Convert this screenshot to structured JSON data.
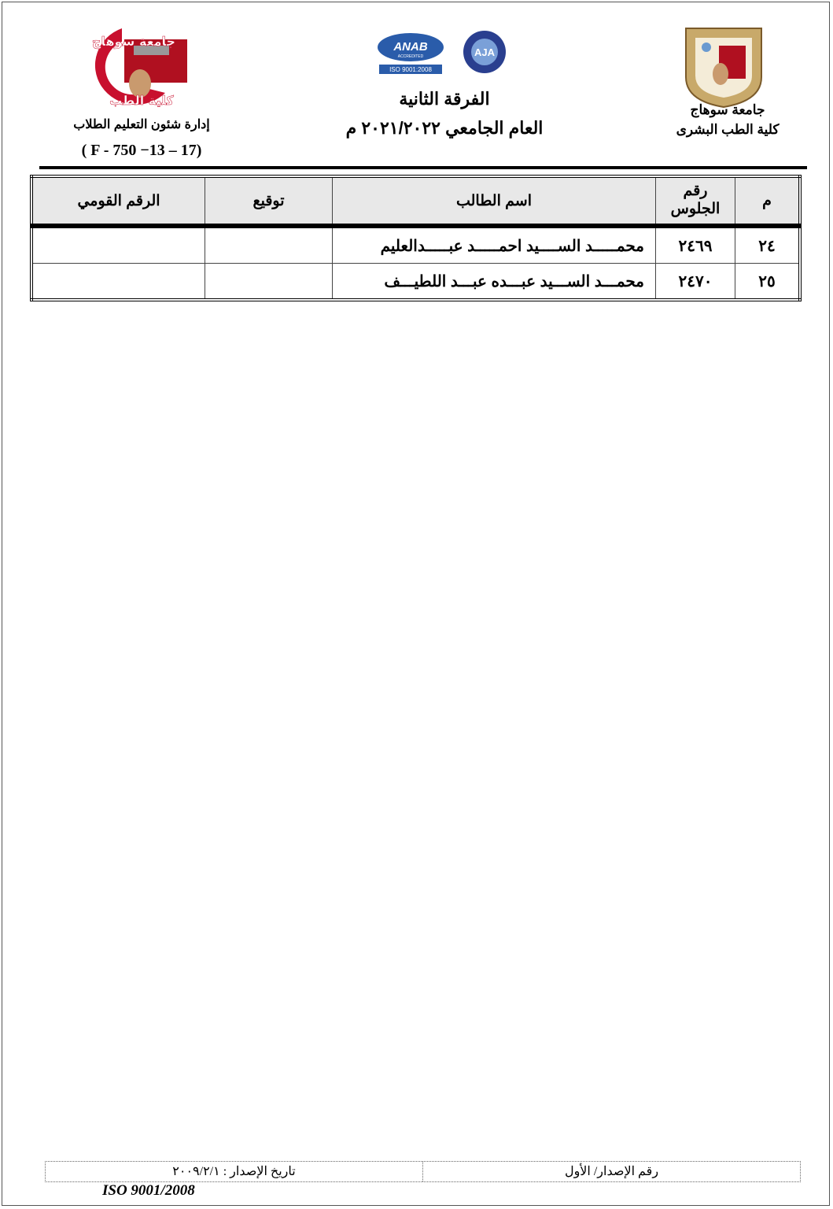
{
  "header": {
    "right": {
      "university": "جامعة سوهاج",
      "faculty": "كلية الطب البشرى"
    },
    "center": {
      "year_group": "الفرقة الثانية",
      "academic_year": "العام الجامعي ٢٠٢١/٢٠٢٢ م"
    },
    "left": {
      "department": "إدارة شئون التعليم الطلاب",
      "form_code": "( F - 750 −13 – 17)"
    },
    "logos": {
      "faculty_logo_text": "جامعة سوهاج كلية الطب",
      "anab": "ANAB",
      "anab_sub": "ACCREDITED",
      "iso_badge": "ISO 9001:2008",
      "aja": "AJA"
    }
  },
  "table": {
    "headers": {
      "index": "م",
      "seat_no": "رقم الجلوس",
      "name": "اسم الطالب",
      "signature": "توقيع",
      "national_id": "الرقم القومي"
    },
    "rows": [
      {
        "index": "٢٤",
        "seat_no": "٢٤٦٩",
        "name": "محمـــــد الســــيد احمـــــد عبـــــدالعليم",
        "signature": "",
        "national_id": ""
      },
      {
        "index": "٢٥",
        "seat_no": "٢٤٧٠",
        "name": "محمـــد الســـيد عبـــده عبـــد اللطيـــف",
        "signature": "",
        "national_id": ""
      }
    ]
  },
  "footer": {
    "issue_no": "رقم الإصدار/ الأول",
    "issue_date": "تاريخ الإصدار : ٢٠٠٩/٢/١",
    "iso": "ISO 9001/2008"
  },
  "colors": {
    "logo_red": "#c8102e",
    "seal_gold": "#c8a96a",
    "anab_blue": "#2a5caa"
  }
}
